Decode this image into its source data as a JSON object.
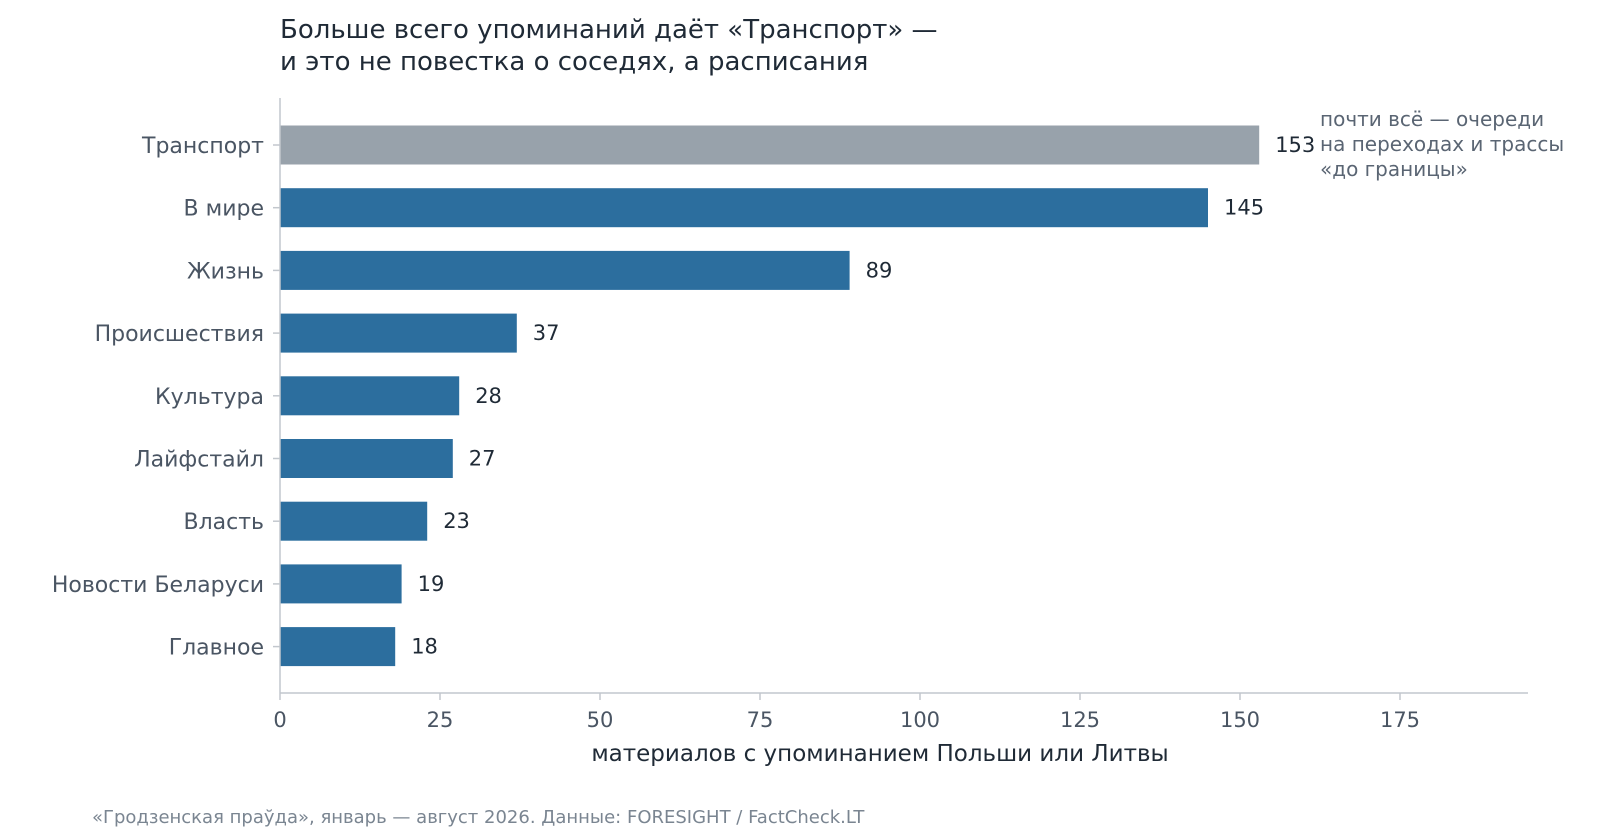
{
  "chart_data": {
    "type": "bar",
    "orientation": "horizontal",
    "title_lines": [
      "Больше всего упоминаний даёт «Транспорт» —",
      "и это не повестка о соседях, а расписания"
    ],
    "categories": [
      "Транспорт",
      "В мире",
      "Жизнь",
      "Происшествия",
      "Культура",
      "Лайфстайл",
      "Власть",
      "Новости Беларуси",
      "Главное"
    ],
    "values": [
      153,
      145,
      89,
      37,
      28,
      27,
      23,
      19,
      18
    ],
    "xlabel": "материалов с упоминанием Польши или Литвы",
    "xlim": [
      0,
      195
    ],
    "xticks": [
      0,
      25,
      50,
      75,
      100,
      125,
      150,
      175
    ],
    "grid": false,
    "colors": {
      "highlight": "#98a2ab",
      "default": "#2c6e9e"
    },
    "highlight_index": 0,
    "annotation_lines": [
      "почти всё — очереди",
      "на переходах и трассы",
      "«до границы»"
    ]
  },
  "source": "«Гродзенская праўда», январь — август 2026. Данные: FORESIGHT / FactCheck.LT"
}
